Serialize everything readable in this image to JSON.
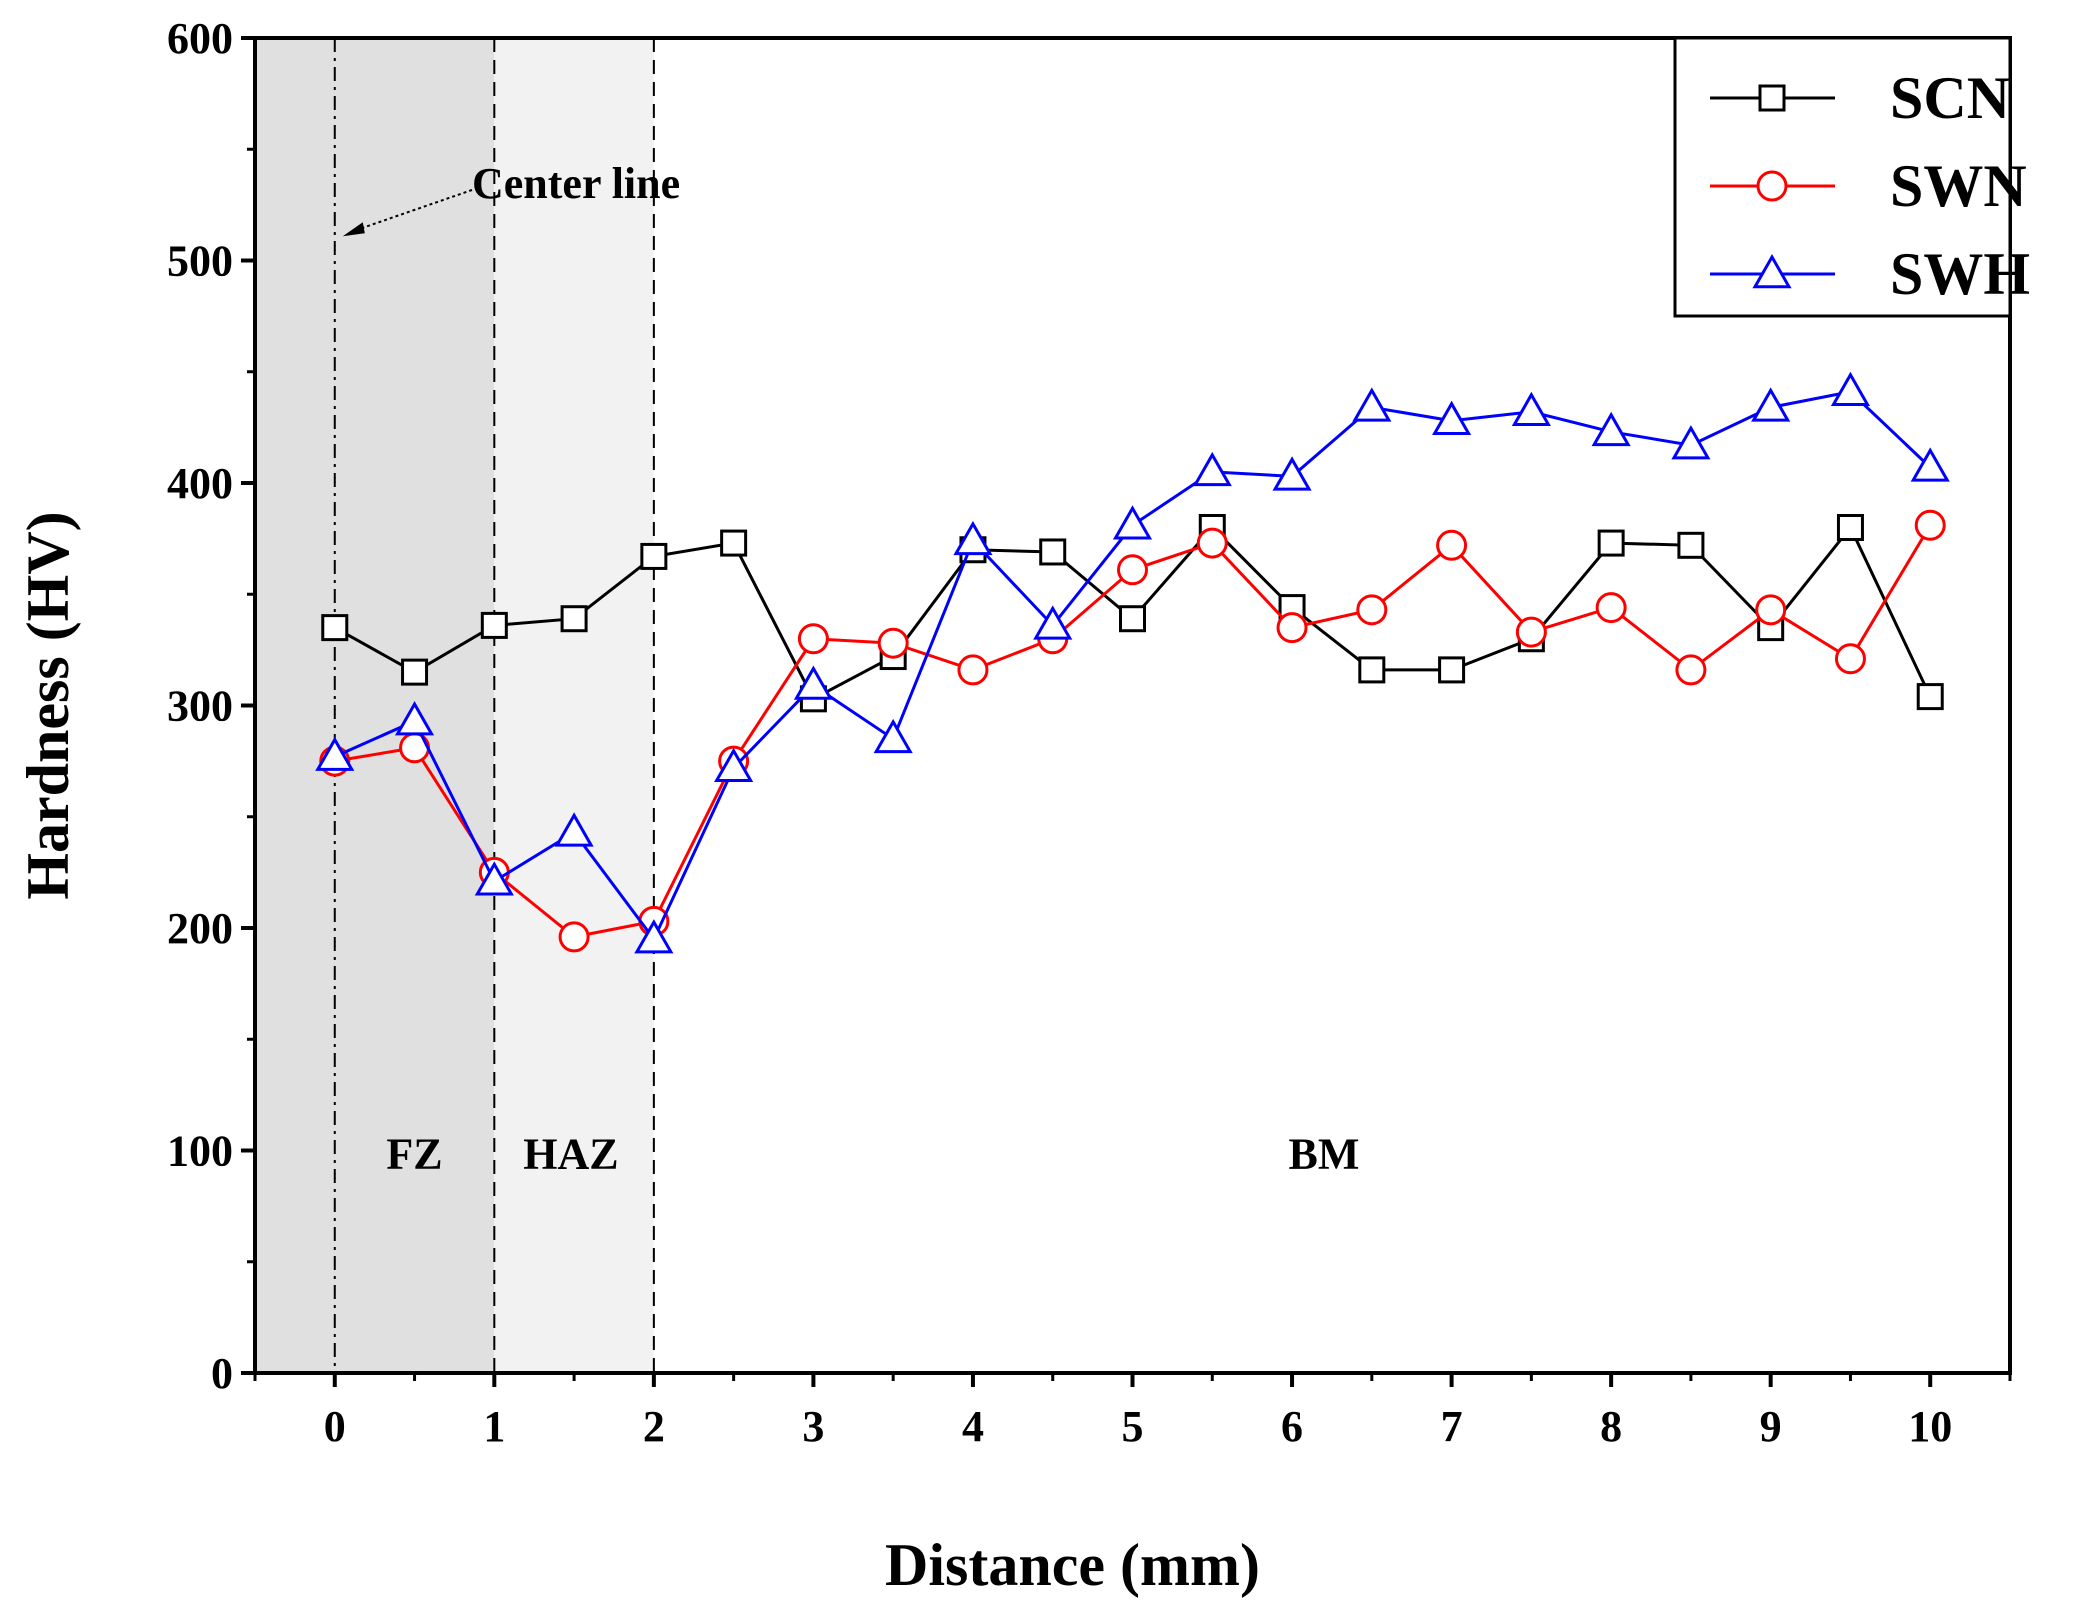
{
  "chart_data": {
    "type": "line",
    "title": "",
    "xlabel": "Distance (mm)",
    "ylabel": "Hardness (HV)",
    "xlim": [
      -0.5,
      10.5
    ],
    "ylim": [
      0,
      600
    ],
    "xticks": [
      0,
      1,
      2,
      3,
      4,
      5,
      6,
      7,
      8,
      9,
      10
    ],
    "yticks": [
      0,
      100,
      200,
      300,
      400,
      500,
      600
    ],
    "x": [
      0,
      0.5,
      1,
      1.5,
      2,
      2.5,
      3,
      3.5,
      4,
      4.5,
      5,
      5.5,
      6,
      6.5,
      7,
      7.5,
      8,
      8.5,
      9,
      9.5,
      10
    ],
    "series": [
      {
        "name": "SCN",
        "color": "#000000",
        "marker": "square",
        "values": [
          335,
          315,
          336,
          339,
          367,
          373,
          303,
          322,
          370,
          369,
          339,
          380,
          344,
          316,
          316,
          330,
          373,
          372,
          335,
          380,
          304
        ]
      },
      {
        "name": "SWN",
        "color": "#ff0000",
        "marker": "circle",
        "values": [
          275,
          281,
          225,
          196,
          203,
          275,
          330,
          328,
          316,
          330,
          361,
          373,
          335,
          343,
          372,
          333,
          344,
          316,
          343,
          321,
          381
        ]
      },
      {
        "name": "SWH",
        "color": "#0000ff",
        "marker": "triangle",
        "values": [
          277,
          293,
          221,
          243,
          195,
          272,
          309,
          285,
          374,
          336,
          381,
          405,
          403,
          434,
          428,
          432,
          423,
          417,
          434,
          441,
          407
        ]
      }
    ],
    "legend": {
      "position": "top-right",
      "entries": [
        "SCN",
        "SWN",
        "SWH"
      ]
    },
    "regions": [
      {
        "label": "FZ",
        "x_from": -0.5,
        "x_to": 1,
        "fill": "#e0e0e0"
      },
      {
        "label": "HAZ",
        "x_from": 1,
        "x_to": 2,
        "fill": "#f2f2f2"
      },
      {
        "label": "BM",
        "x_from": 2,
        "x_to": 10.5,
        "fill": "#ffffff"
      }
    ],
    "reference_lines": [
      {
        "x": 0,
        "style": "dash-dot"
      },
      {
        "x": 1,
        "style": "dashed"
      },
      {
        "x": 2,
        "style": "dashed"
      }
    ],
    "annotations": [
      {
        "text": "Center line",
        "points_to_x": 0,
        "points_to_y": 510
      }
    ]
  }
}
